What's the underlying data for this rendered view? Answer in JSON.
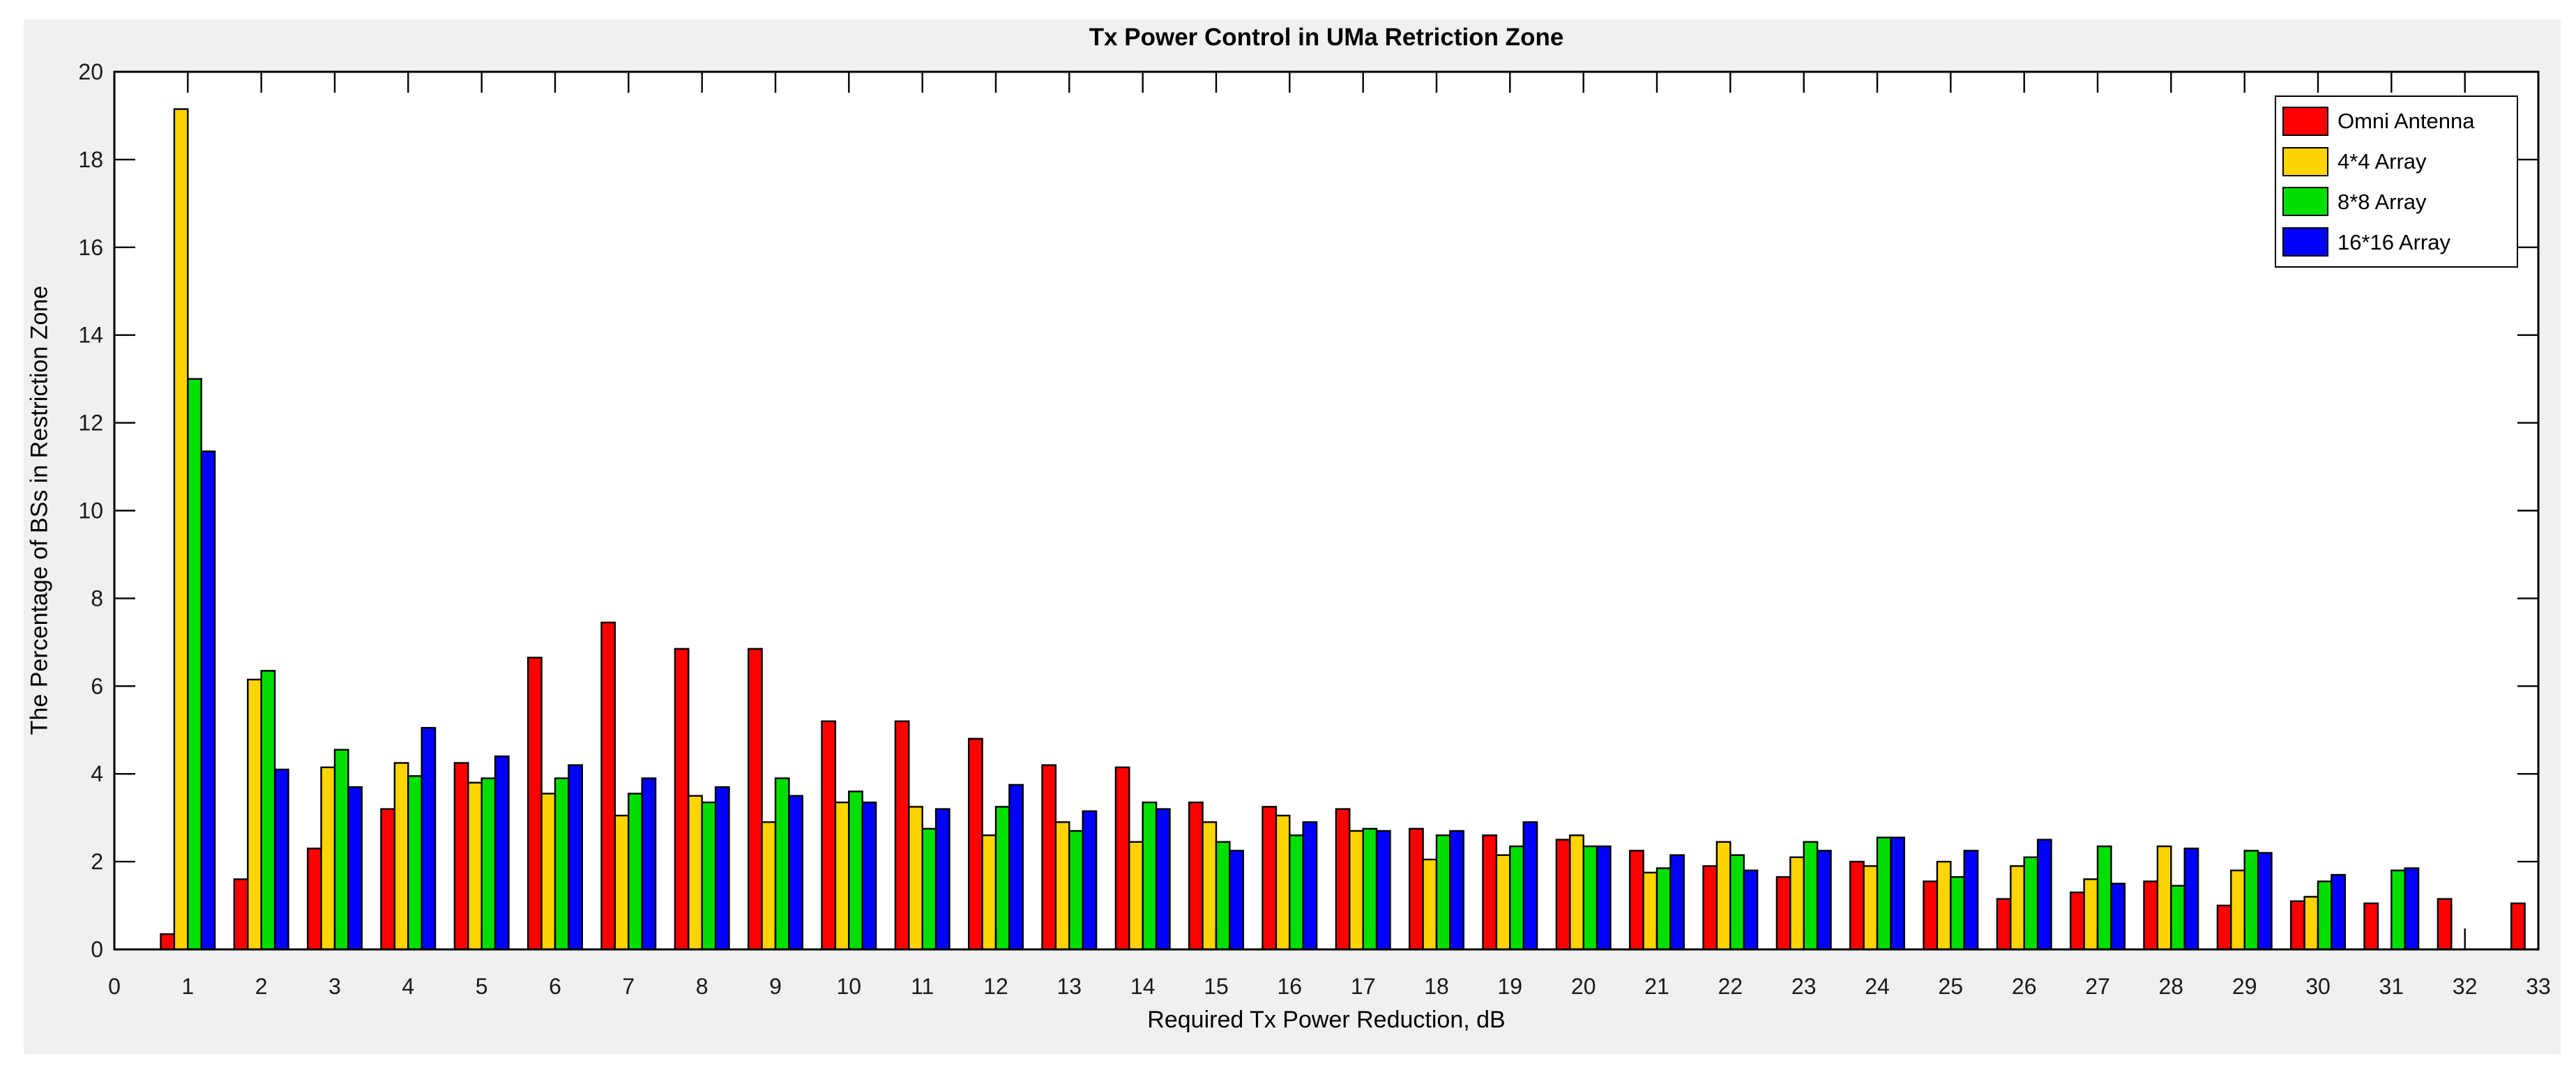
{
  "chart": {
    "title": "Tx Power Control in UMa Retriction Zone",
    "xlabel": "Required Tx Power Reduction, dB",
    "ylabel": "The Percentage of BSs in Restriction Zone"
  },
  "legend": [
    {
      "label": "Omni Antenna",
      "color": "#ff0000"
    },
    {
      "label": "4*4 Array",
      "color": "#ffd400"
    },
    {
      "label": "8*8 Array",
      "color": "#00df00"
    },
    {
      "label": "16*16 Array",
      "color": "#0000ff"
    }
  ],
  "colors": {
    "figure_background": "#f0f0f0",
    "plot_background": "#ffffff",
    "axis": "#000000",
    "tick_label": "#1a1a1a"
  },
  "chart_data": {
    "type": "bar",
    "title": "Tx Power Control in UMa Retriction Zone",
    "xlabel": "Required Tx Power Reduction, dB",
    "ylabel": "The Percentage of BSs in Restriction Zone",
    "xlim": [
      0,
      33
    ],
    "ylim": [
      0,
      20
    ],
    "x_ticks": [
      0,
      1,
      2,
      3,
      4,
      5,
      6,
      7,
      8,
      9,
      10,
      11,
      12,
      13,
      14,
      15,
      16,
      17,
      18,
      19,
      20,
      21,
      22,
      23,
      24,
      25,
      26,
      27,
      28,
      29,
      30,
      31,
      32,
      33
    ],
    "y_ticks": [
      0,
      2,
      4,
      6,
      8,
      10,
      12,
      14,
      16,
      18,
      20
    ],
    "grid": false,
    "legend_position": "top-right",
    "x": [
      1,
      2,
      3,
      4,
      5,
      6,
      7,
      8,
      9,
      10,
      11,
      12,
      13,
      14,
      15,
      16,
      17,
      18,
      19,
      20,
      21,
      22,
      23,
      24,
      25,
      26,
      27,
      28,
      29,
      30,
      31,
      32,
      33
    ],
    "series": [
      {
        "name": "Omni Antenna",
        "color": "#ff0000",
        "values": [
          0.35,
          1.6,
          2.3,
          3.2,
          4.25,
          6.65,
          7.45,
          6.85,
          6.85,
          5.2,
          5.2,
          4.8,
          4.2,
          4.15,
          3.35,
          3.25,
          3.2,
          2.75,
          2.6,
          2.5,
          2.25,
          1.9,
          1.65,
          2.0,
          1.55,
          1.15,
          1.3,
          1.55,
          1.0,
          1.1,
          1.05,
          1.15,
          1.05
        ]
      },
      {
        "name": "4*4 Array",
        "color": "#ffd400",
        "values": [
          19.15,
          6.15,
          4.15,
          4.25,
          3.8,
          3.55,
          3.05,
          3.5,
          2.9,
          3.35,
          3.25,
          2.6,
          2.9,
          2.45,
          2.9,
          3.05,
          2.7,
          2.05,
          2.15,
          2.6,
          1.75,
          2.45,
          2.1,
          1.9,
          2.0,
          1.9,
          1.6,
          2.35,
          1.8,
          1.2,
          0,
          0,
          0
        ]
      },
      {
        "name": "8*8 Array",
        "color": "#00df00",
        "values": [
          13.0,
          6.35,
          4.55,
          3.95,
          3.9,
          3.9,
          3.55,
          3.35,
          3.9,
          3.6,
          2.75,
          3.25,
          2.7,
          3.35,
          2.45,
          2.6,
          2.75,
          2.6,
          2.35,
          2.35,
          1.85,
          2.15,
          2.45,
          2.55,
          1.65,
          2.1,
          2.35,
          1.45,
          2.25,
          1.55,
          1.8,
          0,
          0
        ]
      },
      {
        "name": "16*16 Array",
        "color": "#0000ff",
        "values": [
          11.35,
          4.1,
          3.7,
          5.05,
          4.4,
          4.2,
          3.9,
          3.7,
          3.5,
          3.35,
          3.2,
          3.75,
          3.15,
          3.2,
          2.25,
          2.9,
          2.7,
          2.7,
          2.9,
          2.35,
          2.15,
          1.8,
          2.25,
          2.55,
          2.25,
          2.5,
          1.5,
          2.3,
          2.2,
          1.7,
          1.85,
          0,
          0
        ]
      }
    ]
  }
}
